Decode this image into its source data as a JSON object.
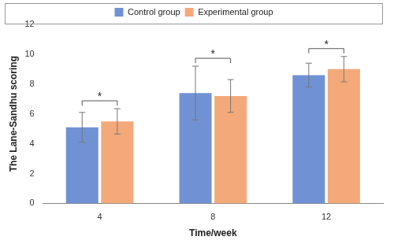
{
  "chart_data": {
    "type": "bar",
    "categories": [
      "4",
      "8",
      "12"
    ],
    "x_label": "Time/week",
    "y_label": "The Lane-Sandhu scoring",
    "series": [
      {
        "name": "Control group",
        "color": "#7092d4",
        "values": [
          5.1,
          7.4,
          8.6
        ],
        "errors": [
          1.0,
          1.8,
          0.8
        ]
      },
      {
        "name": "Experimental group",
        "color": "#f4a97a",
        "values": [
          5.5,
          7.2,
          9.0
        ],
        "errors": [
          0.85,
          1.1,
          0.85
        ]
      }
    ],
    "annotations": [
      {
        "text": "*",
        "category": "4"
      },
      {
        "text": "*",
        "category": "8"
      },
      {
        "text": "*",
        "category": "12"
      }
    ],
    "ylim": [
      0,
      12
    ],
    "yticks": [
      0,
      2,
      4,
      6,
      8,
      10,
      12
    ],
    "grid": false,
    "legend": "top"
  }
}
